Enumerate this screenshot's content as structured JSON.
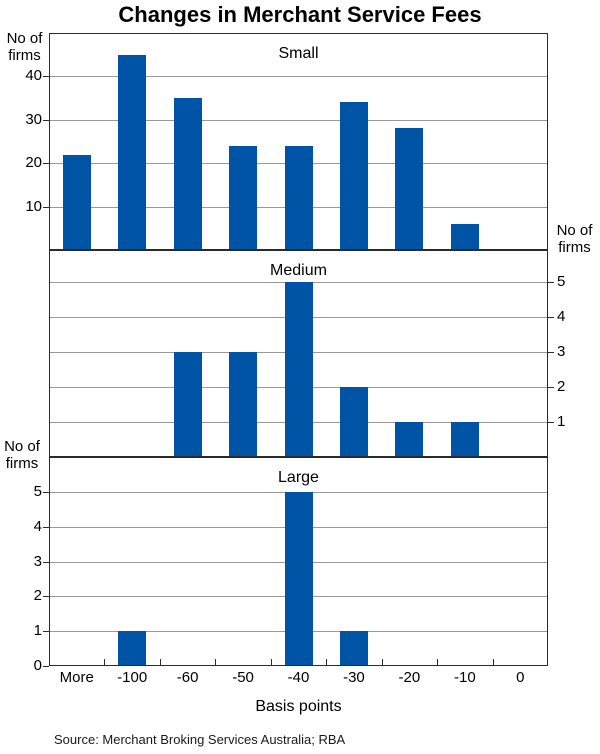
{
  "title": "Changes in Merchant Service Fees",
  "source": "Source: Merchant Broking Services Australia; RBA",
  "y_caption": {
    "line1": "No of",
    "line2": "firms"
  },
  "colors": {
    "bar": "#0054A6",
    "grid": "#999999",
    "frame": "#2b2b2b"
  },
  "chart_data": {
    "type": "bar",
    "title": "Changes in Merchant Service Fees",
    "xlabel": "Basis points",
    "ylabel": "No of firms",
    "categories": [
      "More",
      "-100",
      "-60",
      "-50",
      "-40",
      "-30",
      "-20",
      "-10",
      "0"
    ],
    "legend": "none",
    "grid": "horizontal",
    "panels": [
      {
        "label": "Small",
        "values": [
          22,
          45,
          35,
          24,
          24,
          34,
          28,
          6,
          0
        ],
        "yticks": [
          10,
          20,
          30,
          40
        ],
        "ylim": [
          0,
          50
        ],
        "tick_side": "left"
      },
      {
        "label": "Medium",
        "values": [
          0,
          0,
          3,
          3,
          5,
          2,
          1,
          1,
          0
        ],
        "yticks": [
          1,
          2,
          3,
          4,
          5
        ],
        "ylim": [
          0,
          5.9
        ],
        "tick_side": "right"
      },
      {
        "label": "Large",
        "values": [
          0,
          1,
          0,
          0,
          5,
          1,
          0,
          0,
          0
        ],
        "yticks": [
          0,
          1,
          2,
          3,
          4,
          5
        ],
        "ylim": [
          0,
          6
        ],
        "tick_side": "left"
      }
    ]
  }
}
